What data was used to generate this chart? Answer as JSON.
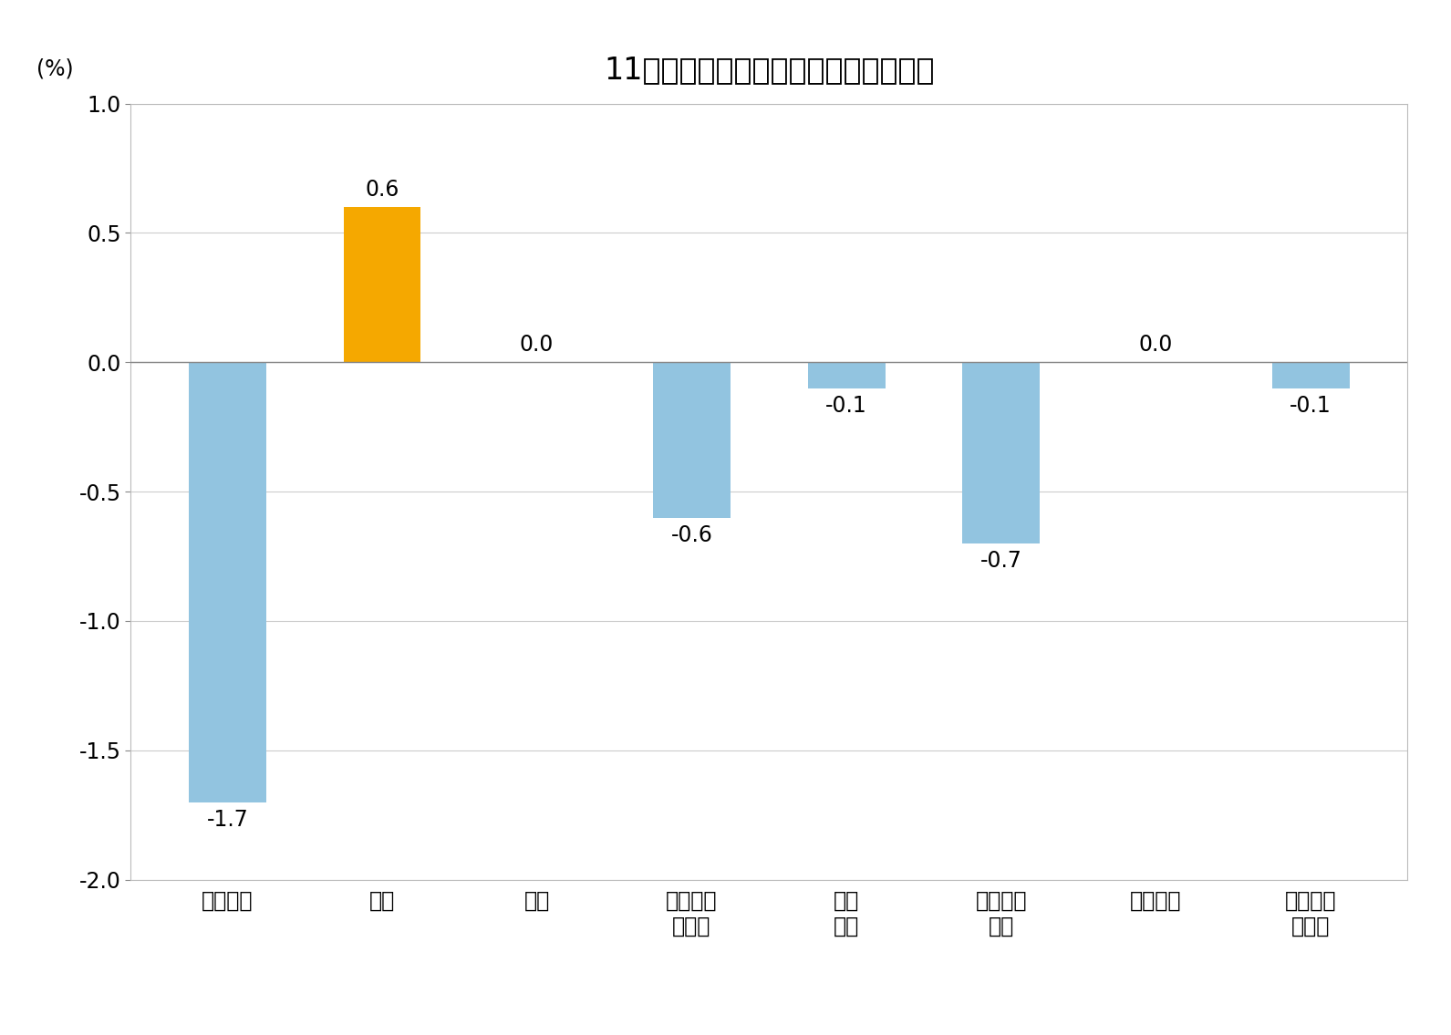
{
  "title": "11月份居民消费价格分类别环比涨跌幅",
  "ylabel": "(%)",
  "categories": [
    "食品烟酒",
    "衣着",
    "居住",
    "生活用品\n及服务",
    "交通\n通信",
    "教育文化\n娱乐",
    "医疗保健",
    "其他用品\n及服务"
  ],
  "values": [
    -1.7,
    0.6,
    0.0,
    -0.6,
    -0.1,
    -0.7,
    0.0,
    -0.1
  ],
  "bar_colors": [
    "#92C4E0",
    "#F5A800",
    "#92C4E0",
    "#92C4E0",
    "#92C4E0",
    "#92C4E0",
    "#92C4E0",
    "#92C4E0"
  ],
  "ylim": [
    -2.0,
    1.0
  ],
  "yticks": [
    -2.0,
    -1.5,
    -1.0,
    -0.5,
    0.0,
    0.5,
    1.0
  ],
  "background_color": "#ffffff",
  "plot_bg_color": "#ffffff",
  "title_fontsize": 24,
  "tick_fontsize": 17,
  "ylabel_fontsize": 17,
  "bar_label_fontsize": 17,
  "grid_color": "#cccccc",
  "spine_color": "#bbbbbb",
  "zero_line_color": "#888888"
}
